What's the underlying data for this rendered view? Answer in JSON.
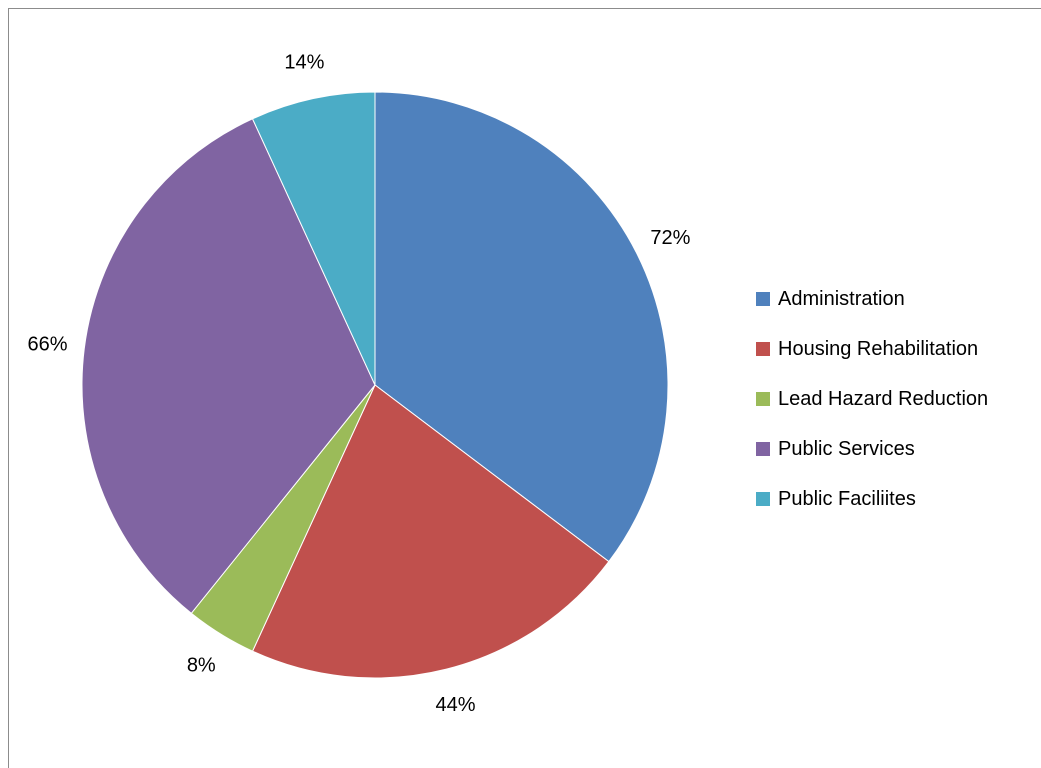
{
  "chart_data": {
    "type": "pie",
    "title": "",
    "start_angle_deg": 0,
    "slices": [
      {
        "name": "Administration",
        "value": 72,
        "label": "72%",
        "color": "#4F81BD"
      },
      {
        "name": "Housing Rehabilitation",
        "value": 44,
        "label": "44%",
        "color": "#C0504D"
      },
      {
        "name": "Lead Hazard Reduction",
        "value": 8,
        "label": "8%",
        "color": "#9BBB59"
      },
      {
        "name": "Public Services",
        "value": 66,
        "label": "66%",
        "color": "#8064A2"
      },
      {
        "name": "Public Faciliites",
        "value": 14,
        "label": "14%",
        "color": "#4BACC6"
      }
    ],
    "legend_position": "right"
  }
}
